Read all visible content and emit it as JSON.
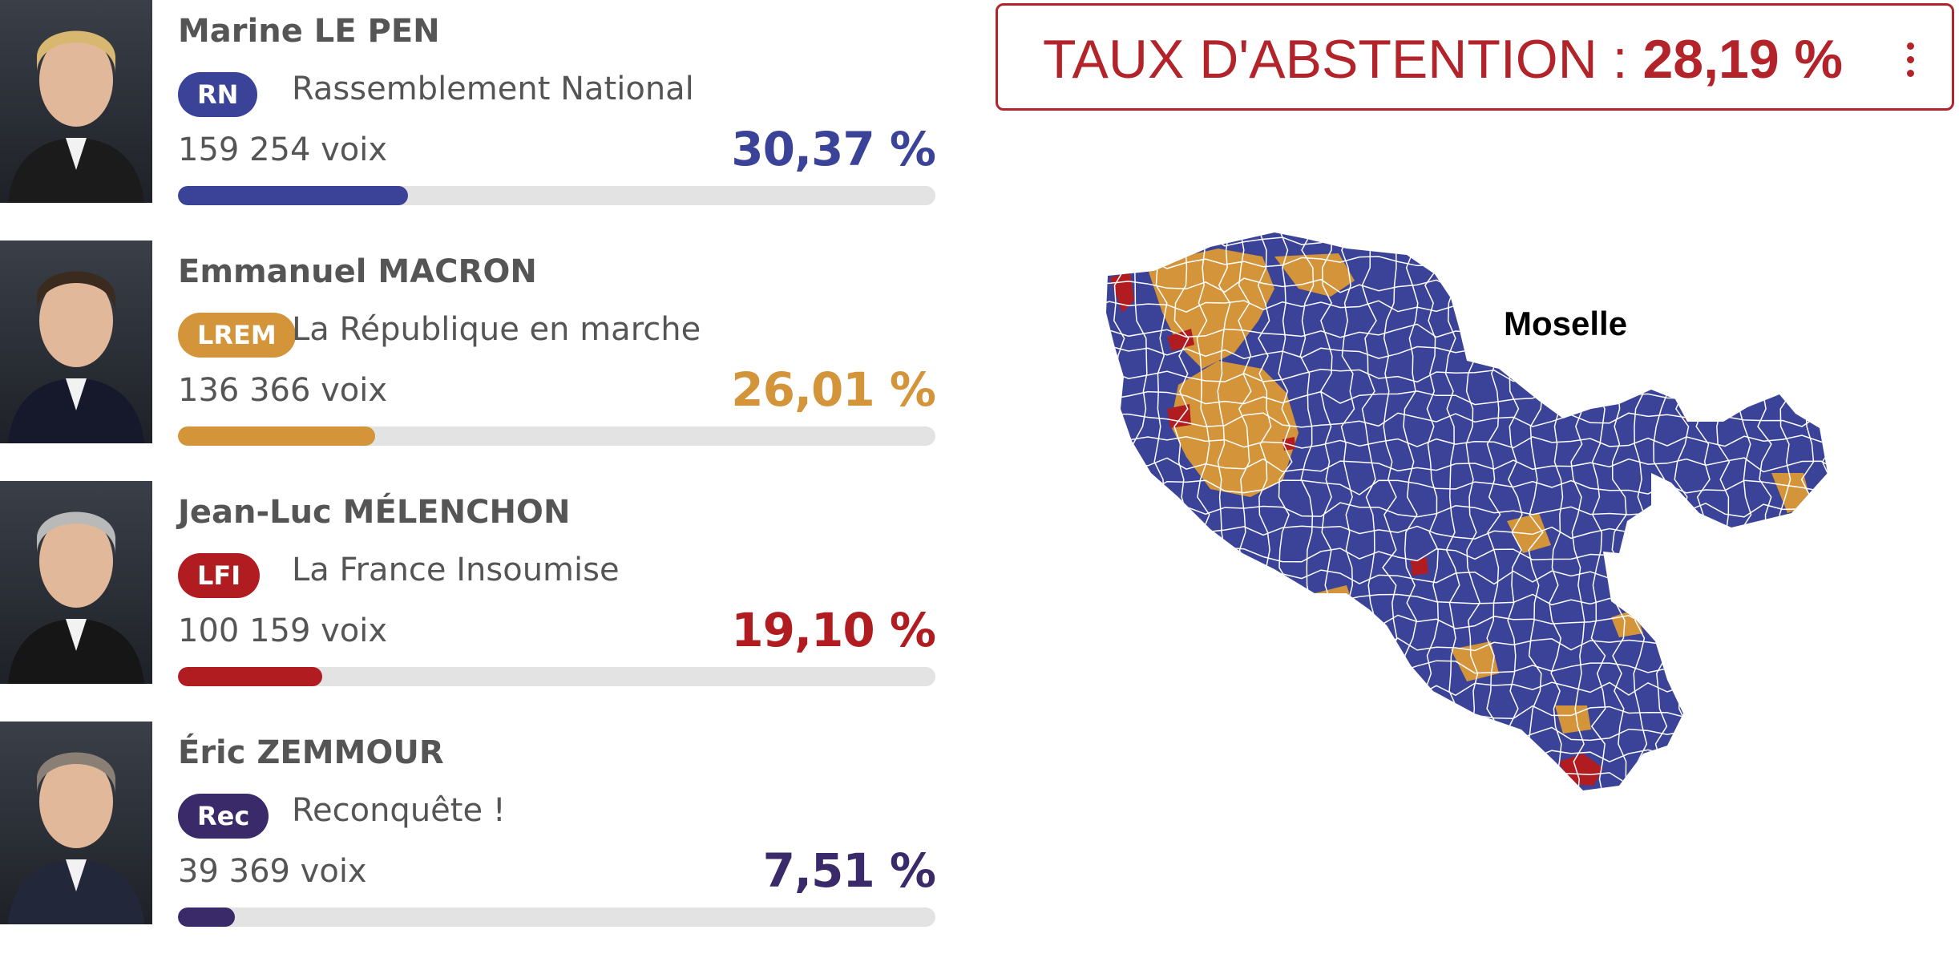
{
  "candidates": [
    {
      "name": "Marine LE PEN",
      "badge": "RN",
      "party": "Rassemblement National",
      "votes": "159 254 voix",
      "percent": "30,37 %",
      "share": 0.3037,
      "color": "#3a4398",
      "suit": "#1b1b1b",
      "hair": "#d8b770"
    },
    {
      "name": "Emmanuel MACRON",
      "badge": "LREM",
      "party": "La République en marche",
      "votes": "136 366 voix",
      "percent": "26,01 %",
      "share": 0.2601,
      "color": "#d4943a",
      "suit": "#16192b",
      "hair": "#3b2a1e"
    },
    {
      "name": "Jean-Luc MÉLENCHON",
      "badge": "LFI",
      "party": "La France Insoumise",
      "votes": "100 159 voix",
      "percent": "19,10 %",
      "share": 0.191,
      "color": "#b01c20",
      "suit": "#161616",
      "hair": "#b9b9b9"
    },
    {
      "name": "Éric ZEMMOUR",
      "badge": "Rec",
      "party": "Reconquête !",
      "votes": "39 369 voix",
      "percent": "7,51 %",
      "share": 0.0751,
      "color": "#3a2a6a",
      "suit": "#23273a",
      "hair": "#8a7f74"
    }
  ],
  "abstention": {
    "label": "TAUX D'ABSTENTION : ",
    "value": "28,19 %",
    "color": "#b2232a"
  },
  "map": {
    "label": "Moselle",
    "colors": {
      "rn": "#3a4398",
      "lrem": "#d4943a",
      "lfi": "#b01c20",
      "border": "#ffffff"
    }
  }
}
